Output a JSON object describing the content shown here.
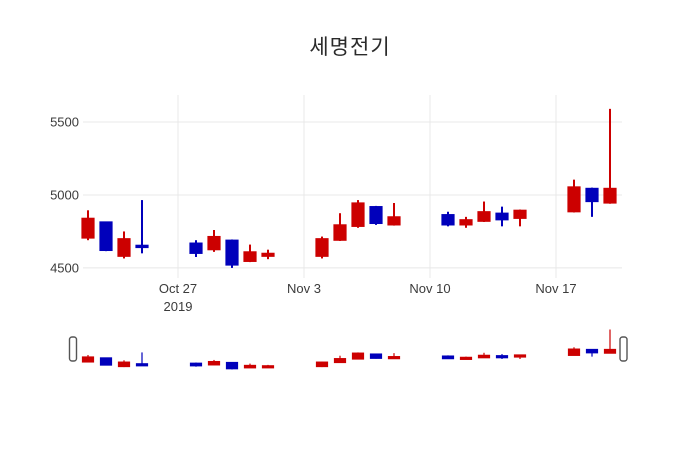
{
  "chart_data": {
    "type": "candlestick",
    "title": "세명전기",
    "xlabel": "",
    "ylabel": "",
    "grid": true,
    "legend": false,
    "colors": {
      "increasing": "#cc0000",
      "decreasing": "#0000bb",
      "gridline": "#e8e8e8",
      "tick_text": "#3b3b3b",
      "title_text": "#2a2a2a",
      "handle_border": "#555555",
      "handle_fill": "#ffffff"
    },
    "y_axis": {
      "tick_values": [
        4500,
        5000,
        5500
      ],
      "tick_labels": [
        "4500",
        "5000",
        "5500"
      ],
      "range": [
        4431,
        5685
      ]
    },
    "x_axis": {
      "ticks": [
        {
          "date": "2019-10-27",
          "label": "Oct 27",
          "sublabel": "2019"
        },
        {
          "date": "2019-11-03",
          "label": "Nov 3",
          "sublabel": ""
        },
        {
          "date": "2019-11-10",
          "label": "Nov 10",
          "sublabel": ""
        },
        {
          "date": "2019-11-17",
          "label": "Nov 17",
          "sublabel": ""
        }
      ],
      "base_date": "2019-10-20"
    },
    "rangeslider": {
      "visible": true
    },
    "candles": [
      {
        "date": "2019-10-22",
        "open": 4705,
        "high": 4895,
        "low": 4690,
        "close": 4840,
        "direction": "up"
      },
      {
        "date": "2019-10-23",
        "open": 4815,
        "high": 4815,
        "low": 4615,
        "close": 4620,
        "direction": "down"
      },
      {
        "date": "2019-10-24",
        "open": 4580,
        "high": 4750,
        "low": 4565,
        "close": 4700,
        "direction": "up"
      },
      {
        "date": "2019-10-25",
        "open": 4655,
        "high": 4965,
        "low": 4600,
        "close": 4640,
        "direction": "down"
      },
      {
        "date": "2019-10-28",
        "open": 4670,
        "high": 4690,
        "low": 4575,
        "close": 4600,
        "direction": "down"
      },
      {
        "date": "2019-10-29",
        "open": 4625,
        "high": 4760,
        "low": 4610,
        "close": 4715,
        "direction": "up"
      },
      {
        "date": "2019-10-30",
        "open": 4690,
        "high": 4695,
        "low": 4500,
        "close": 4520,
        "direction": "down"
      },
      {
        "date": "2019-10-31",
        "open": 4545,
        "high": 4660,
        "low": 4540,
        "close": 4610,
        "direction": "up"
      },
      {
        "date": "2019-11-01",
        "open": 4580,
        "high": 4625,
        "low": 4560,
        "close": 4600,
        "direction": "up"
      },
      {
        "date": "2019-11-04",
        "open": 4580,
        "high": 4715,
        "low": 4565,
        "close": 4700,
        "direction": "up"
      },
      {
        "date": "2019-11-05",
        "open": 4690,
        "high": 4875,
        "low": 4685,
        "close": 4795,
        "direction": "up"
      },
      {
        "date": "2019-11-06",
        "open": 4785,
        "high": 4965,
        "low": 4775,
        "close": 4945,
        "direction": "up"
      },
      {
        "date": "2019-11-07",
        "open": 4920,
        "high": 4925,
        "low": 4795,
        "close": 4805,
        "direction": "down"
      },
      {
        "date": "2019-11-08",
        "open": 4795,
        "high": 4945,
        "low": 4790,
        "close": 4850,
        "direction": "up"
      },
      {
        "date": "2019-11-11",
        "open": 4865,
        "high": 4885,
        "low": 4785,
        "close": 4795,
        "direction": "down"
      },
      {
        "date": "2019-11-12",
        "open": 4795,
        "high": 4850,
        "low": 4775,
        "close": 4830,
        "direction": "up"
      },
      {
        "date": "2019-11-13",
        "open": 4820,
        "high": 4955,
        "low": 4815,
        "close": 4885,
        "direction": "up"
      },
      {
        "date": "2019-11-14",
        "open": 4875,
        "high": 4920,
        "low": 4785,
        "close": 4830,
        "direction": "down"
      },
      {
        "date": "2019-11-15",
        "open": 4840,
        "high": 4900,
        "low": 4785,
        "close": 4895,
        "direction": "up"
      },
      {
        "date": "2019-11-18",
        "open": 4885,
        "high": 5105,
        "low": 4880,
        "close": 5055,
        "direction": "up"
      },
      {
        "date": "2019-11-19",
        "open": 5045,
        "high": 5050,
        "low": 4850,
        "close": 4955,
        "direction": "down"
      },
      {
        "date": "2019-11-20",
        "open": 4945,
        "high": 5590,
        "low": 4940,
        "close": 5045,
        "direction": "up"
      }
    ]
  }
}
